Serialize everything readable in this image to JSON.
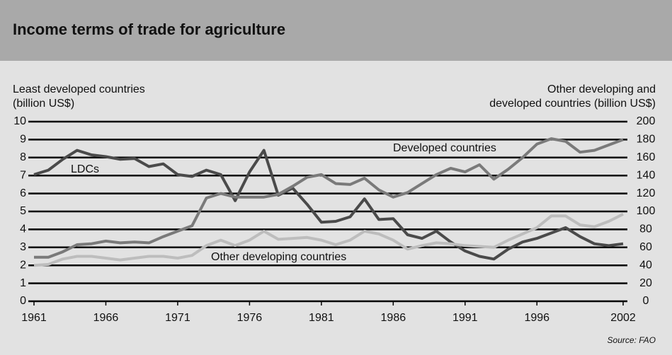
{
  "chart_data": {
    "type": "line",
    "title": "Income terms of trade for agriculture",
    "ylabel": [
      "Least developed countries",
      "(billion US$)"
    ],
    "y2label": [
      "Other developing and",
      "developed countries (billion US$)"
    ],
    "source": "Source: FAO",
    "x": [
      1961,
      1962,
      1963,
      1964,
      1965,
      1966,
      1967,
      1968,
      1969,
      1970,
      1971,
      1972,
      1973,
      1974,
      1975,
      1976,
      1977,
      1978,
      1979,
      1980,
      1981,
      1982,
      1983,
      1984,
      1985,
      1986,
      1987,
      1988,
      1989,
      1990,
      1991,
      1992,
      1993,
      1994,
      1995,
      1996,
      1997,
      1998,
      1999,
      2000,
      2001,
      2002
    ],
    "xlim": [
      1961,
      2002
    ],
    "xticks": [
      1961,
      1966,
      1971,
      1976,
      1981,
      1986,
      1991,
      1996,
      2002
    ],
    "ylim": [
      0,
      10
    ],
    "yticks": [
      0,
      1,
      2,
      3,
      4,
      5,
      6,
      7,
      8,
      9,
      10
    ],
    "y2lim": [
      0,
      200
    ],
    "y2ticks": [
      0,
      20,
      40,
      60,
      80,
      100,
      120,
      140,
      160,
      180,
      200
    ],
    "grid": true,
    "series": [
      {
        "name": "LDCs",
        "color": "#4a4a4a",
        "axis": "y",
        "values": [
          7.05,
          7.3,
          7.9,
          8.4,
          8.15,
          8.05,
          7.9,
          7.95,
          7.5,
          7.65,
          7.05,
          6.95,
          7.3,
          7.05,
          5.6,
          7.2,
          8.4,
          5.9,
          6.3,
          5.4,
          4.4,
          4.45,
          4.7,
          5.7,
          4.55,
          4.6,
          3.7,
          3.5,
          3.9,
          3.3,
          2.8,
          2.5,
          2.35,
          2.9,
          3.3,
          3.5,
          3.8,
          4.1,
          3.6,
          3.2,
          3.1,
          3.2
        ]
      },
      {
        "name": "Developed countries",
        "color": "#7a7a7a",
        "axis": "y2",
        "values": [
          49,
          49,
          55,
          63,
          64,
          67,
          65,
          66,
          65,
          72,
          78,
          84,
          115,
          120,
          116,
          116,
          116,
          119,
          128,
          138,
          141,
          131,
          130,
          137,
          124,
          116,
          121,
          131,
          141,
          148,
          144,
          152,
          136,
          147,
          160,
          175,
          181,
          178,
          166,
          168,
          174,
          180
        ]
      },
      {
        "name": "Other developing countries",
        "color": "#bdbdbd",
        "axis": "y2",
        "values": [
          40,
          41,
          47,
          50,
          50,
          48,
          46,
          48,
          50,
          50,
          48,
          51,
          62,
          68,
          62,
          68,
          78,
          69,
          70,
          71,
          68,
          63,
          68,
          78,
          75,
          68,
          58,
          62,
          65,
          64,
          62,
          61,
          60,
          68,
          75,
          82,
          95,
          95,
          85,
          83,
          89,
          97
        ]
      }
    ]
  }
}
